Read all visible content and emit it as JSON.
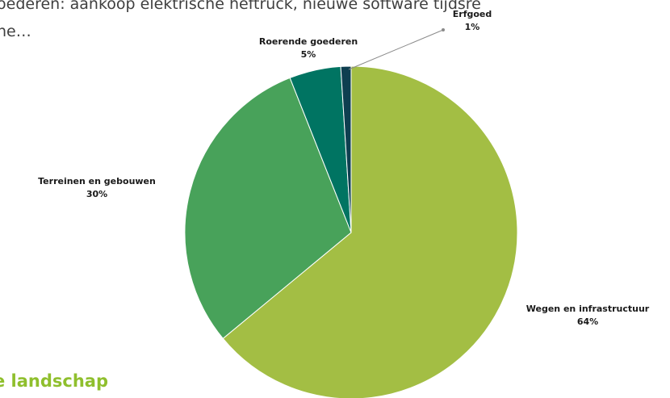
{
  "page": {
    "intro_text": "oederen: aankoop elektrische heftruck, nieuwe software tijdsre\nhe…",
    "section_heading": "e landschap"
  },
  "chart_data": {
    "type": "pie",
    "categories": [
      "Wegen en infrastructuur",
      "Terreinen en gebouwen",
      "Roerende goederen",
      "Erfgoed"
    ],
    "values": [
      64,
      30,
      5,
      1
    ],
    "data_labels": [
      "64%",
      "30%",
      "5%",
      "1%"
    ],
    "colors": [
      "#a3be44",
      "#48a25a",
      "#007462",
      "#0e3f50"
    ],
    "title": "",
    "legend": "none",
    "start_angle_deg": 0,
    "direction": "clockwise"
  }
}
